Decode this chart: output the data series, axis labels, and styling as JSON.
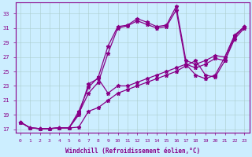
{
  "xlabel": "Windchill (Refroidissement éolien,°C)",
  "background_color": "#cceeff",
  "grid_color": "#aacccc",
  "line_color": "#880088",
  "xlim": [
    -0.5,
    23.5
  ],
  "ylim": [
    16.5,
    34.5
  ],
  "yticks": [
    17,
    19,
    21,
    23,
    25,
    27,
    29,
    31,
    33
  ],
  "xticks": [
    0,
    1,
    2,
    3,
    4,
    5,
    6,
    7,
    8,
    9,
    10,
    11,
    12,
    13,
    14,
    15,
    16,
    17,
    18,
    19,
    20,
    21,
    22,
    23
  ],
  "series": [
    {
      "x": [
        0,
        1,
        2,
        3,
        4,
        5,
        6,
        7,
        8,
        9,
        10,
        11,
        12,
        13,
        14,
        15,
        16,
        17,
        18,
        19,
        20,
        21,
        22,
        23
      ],
      "y": [
        18.0,
        17.2,
        17.1,
        17.1,
        17.2,
        17.2,
        19.5,
        22.8,
        24.2,
        28.5,
        31.2,
        31.4,
        32.3,
        31.8,
        31.2,
        31.4,
        34.0,
        26.5,
        26.0,
        26.5,
        27.2,
        27.0,
        30.0,
        31.2
      ]
    },
    {
      "x": [
        0,
        1,
        2,
        3,
        4,
        5,
        6,
        7,
        8,
        9,
        10,
        11,
        12,
        13,
        14,
        15,
        16,
        17,
        18,
        19,
        20,
        21,
        22,
        23
      ],
      "y": [
        18.0,
        17.2,
        17.1,
        17.1,
        17.2,
        17.2,
        19.2,
        22.0,
        23.5,
        27.5,
        31.0,
        31.3,
        32.0,
        31.5,
        31.0,
        31.2,
        33.5,
        26.0,
        25.5,
        26.0,
        26.8,
        26.5,
        29.5,
        31.0
      ]
    },
    {
      "x": [
        0,
        1,
        2,
        3,
        4,
        5,
        6,
        7,
        8,
        9,
        10,
        11,
        12,
        13,
        14,
        15,
        16,
        17,
        18,
        19,
        20,
        21,
        22,
        23
      ],
      "y": [
        18.0,
        17.2,
        17.1,
        17.1,
        17.2,
        17.2,
        19.0,
        23.3,
        24.0,
        22.0,
        23.0,
        23.0,
        23.5,
        24.0,
        24.5,
        25.0,
        25.5,
        26.0,
        24.5,
        24.0,
        24.5,
        27.0,
        30.0,
        31.2
      ]
    },
    {
      "x": [
        0,
        1,
        2,
        3,
        4,
        5,
        6,
        7,
        8,
        9,
        10,
        11,
        12,
        13,
        14,
        15,
        16,
        17,
        18,
        19,
        20,
        21,
        22,
        23
      ],
      "y": [
        18.0,
        17.2,
        17.1,
        17.1,
        17.2,
        17.2,
        17.3,
        19.5,
        20.0,
        21.0,
        22.0,
        22.5,
        23.0,
        23.5,
        24.0,
        24.5,
        25.0,
        25.8,
        26.5,
        24.5,
        24.2,
        26.5,
        29.8,
        31.2
      ]
    }
  ]
}
